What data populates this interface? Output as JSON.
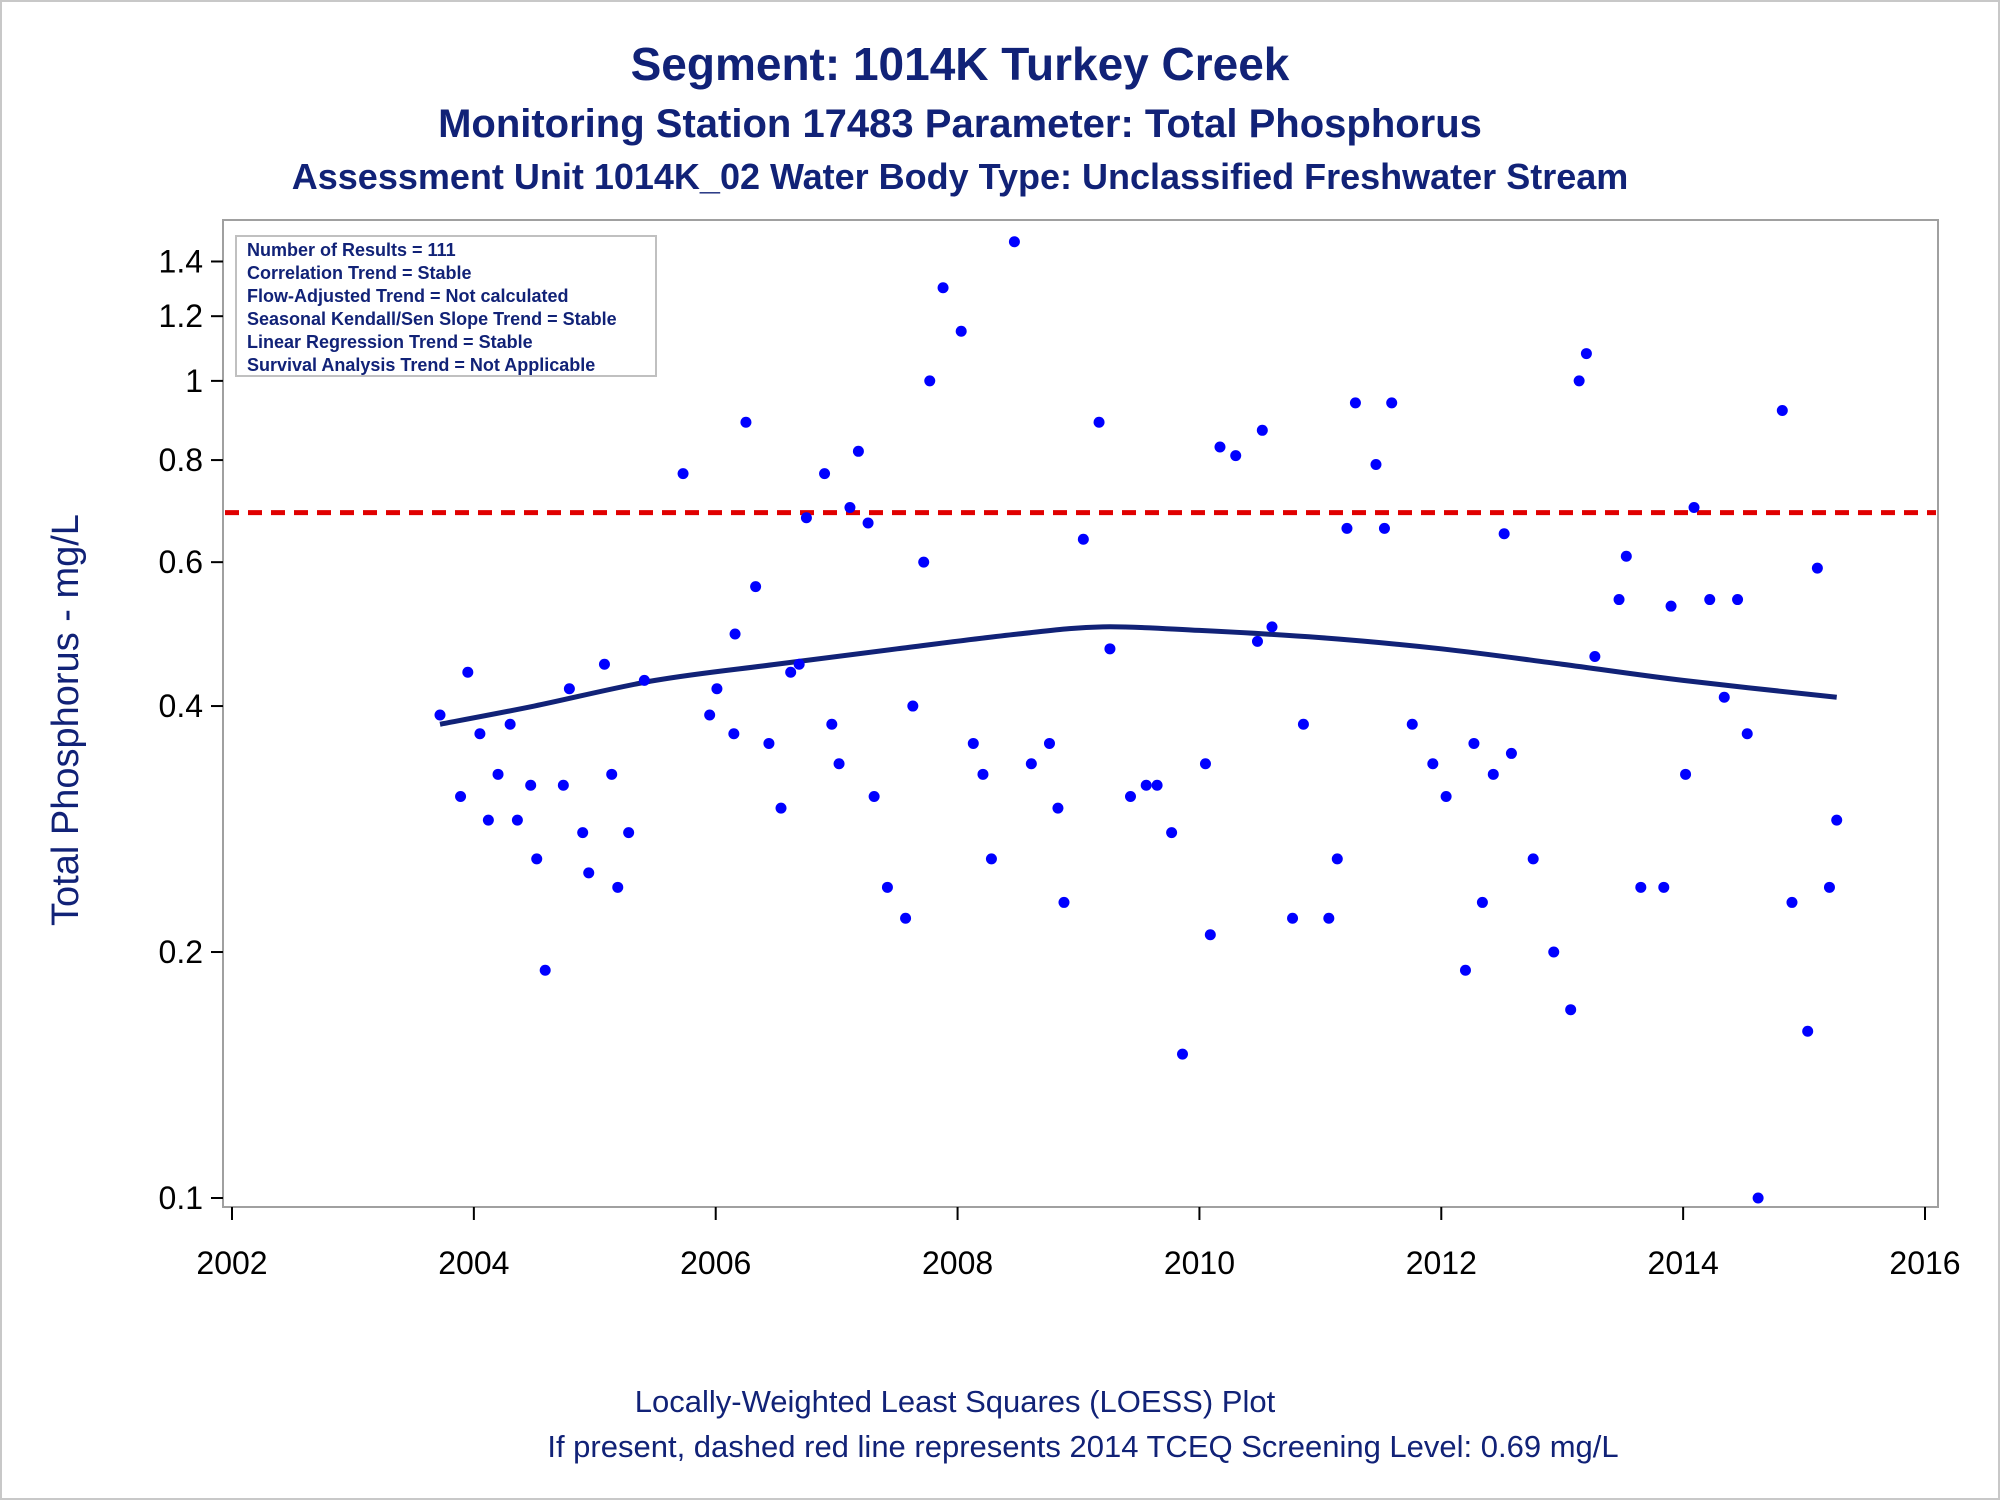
{
  "titles": {
    "line1": "Segment: 1014K  Turkey Creek",
    "line2": "Monitoring Station 17483 Parameter: Total Phosphorus",
    "line3": "Assessment Unit 1014K_02   Water Body Type: Unclassified Freshwater Stream"
  },
  "footnotes": {
    "line1": "Locally-Weighted Least Squares (LOESS) Plot",
    "line2": "If present, dashed red line represents 2014 TCEQ Screening Level: 0.69 mg/L"
  },
  "legend_box": {
    "lines": [
      "Number of Results = 111",
      "Correlation Trend = Stable",
      "Flow-Adjusted Trend = Not calculated",
      "Seasonal Kendall/Sen Slope Trend = Stable",
      "Linear Regression Trend = Stable",
      "Survival Analysis Trend = Not Applicable"
    ]
  },
  "colors": {
    "points": "#0000ff",
    "loess": "#112277",
    "screening": "#e00000",
    "text": "#112277"
  },
  "chart_data": {
    "type": "scatter",
    "ylabel": "Total Phosphorus - mg/L",
    "xlabel": "",
    "y_scale": "log",
    "xlim": [
      2002,
      2016
    ],
    "ylim": [
      0.1,
      1.5
    ],
    "x_ticks": [
      "2002",
      "2004",
      "2006",
      "2008",
      "2010",
      "2012",
      "2014",
      "2016"
    ],
    "y_ticks": [
      "0.1",
      "0.2",
      "0.4",
      "0.6",
      "0.8",
      "1",
      "1.2",
      "1.4"
    ],
    "screening_level": 0.69,
    "points": [
      [
        2003.72,
        0.39
      ],
      [
        2003.89,
        0.31
      ],
      [
        2003.95,
        0.44
      ],
      [
        2004.05,
        0.37
      ],
      [
        2004.12,
        0.29
      ],
      [
        2004.2,
        0.33
      ],
      [
        2004.3,
        0.38
      ],
      [
        2004.36,
        0.29
      ],
      [
        2004.47,
        0.32
      ],
      [
        2004.52,
        0.26
      ],
      [
        2004.59,
        0.19
      ],
      [
        2004.74,
        0.32
      ],
      [
        2004.79,
        0.42
      ],
      [
        2004.9,
        0.28
      ],
      [
        2004.95,
        0.25
      ],
      [
        2005.08,
        0.45
      ],
      [
        2005.14,
        0.33
      ],
      [
        2005.19,
        0.24
      ],
      [
        2005.28,
        0.28
      ],
      [
        2005.41,
        0.43
      ],
      [
        2005.73,
        0.77
      ],
      [
        2005.95,
        0.39
      ],
      [
        2006.01,
        0.42
      ],
      [
        2006.15,
        0.37
      ],
      [
        2006.16,
        0.49
      ],
      [
        2006.25,
        0.89
      ],
      [
        2006.33,
        0.56
      ],
      [
        2006.44,
        0.36
      ],
      [
        2006.54,
        0.3
      ],
      [
        2006.62,
        0.44
      ],
      [
        2006.69,
        0.45
      ],
      [
        2006.75,
        0.68
      ],
      [
        2006.9,
        0.77
      ],
      [
        2006.96,
        0.38
      ],
      [
        2007.02,
        0.34
      ],
      [
        2007.11,
        0.7
      ],
      [
        2007.18,
        0.82
      ],
      [
        2007.26,
        0.67
      ],
      [
        2007.31,
        0.31
      ],
      [
        2007.42,
        0.24
      ],
      [
        2007.57,
        0.22
      ],
      [
        2007.63,
        0.4
      ],
      [
        2007.72,
        0.6
      ],
      [
        2007.77,
        1.0
      ],
      [
        2007.88,
        1.3
      ],
      [
        2008.03,
        1.15
      ],
      [
        2008.13,
        0.36
      ],
      [
        2008.21,
        0.33
      ],
      [
        2008.28,
        0.26
      ],
      [
        2008.47,
        1.48
      ],
      [
        2008.61,
        0.34
      ],
      [
        2008.76,
        0.36
      ],
      [
        2008.83,
        0.3
      ],
      [
        2008.88,
        0.23
      ],
      [
        2009.04,
        0.64
      ],
      [
        2009.17,
        0.89
      ],
      [
        2009.26,
        0.47
      ],
      [
        2009.43,
        0.31
      ],
      [
        2009.56,
        0.32
      ],
      [
        2009.65,
        0.32
      ],
      [
        2009.77,
        0.28
      ],
      [
        2009.86,
        0.15
      ],
      [
        2010.05,
        0.34
      ],
      [
        2010.09,
        0.21
      ],
      [
        2010.17,
        0.83
      ],
      [
        2010.3,
        0.81
      ],
      [
        2010.48,
        0.48
      ],
      [
        2010.52,
        0.87
      ],
      [
        2010.6,
        0.5
      ],
      [
        2010.77,
        0.22
      ],
      [
        2010.86,
        0.38
      ],
      [
        2011.07,
        0.22
      ],
      [
        2011.14,
        0.26
      ],
      [
        2011.22,
        0.66
      ],
      [
        2011.29,
        0.94
      ],
      [
        2011.46,
        0.79
      ],
      [
        2011.53,
        0.66
      ],
      [
        2011.59,
        0.94
      ],
      [
        2011.76,
        0.38
      ],
      [
        2011.93,
        0.34
      ],
      [
        2012.04,
        0.31
      ],
      [
        2012.2,
        0.19
      ],
      [
        2012.27,
        0.36
      ],
      [
        2012.34,
        0.23
      ],
      [
        2012.43,
        0.33
      ],
      [
        2012.58,
        0.35
      ],
      [
        2012.52,
        0.65
      ],
      [
        2012.76,
        0.26
      ],
      [
        2012.93,
        0.2
      ],
      [
        2013.07,
        0.17
      ],
      [
        2013.14,
        1.0
      ],
      [
        2013.2,
        1.08
      ],
      [
        2013.27,
        0.46
      ],
      [
        2013.47,
        0.54
      ],
      [
        2013.53,
        0.61
      ],
      [
        2013.65,
        0.24
      ],
      [
        2013.84,
        0.24
      ],
      [
        2013.9,
        0.53
      ],
      [
        2014.02,
        0.33
      ],
      [
        2014.09,
        0.7
      ],
      [
        2014.22,
        0.54
      ],
      [
        2014.34,
        0.41
      ],
      [
        2014.45,
        0.54
      ],
      [
        2014.53,
        0.37
      ],
      [
        2014.62,
        0.1
      ],
      [
        2014.82,
        0.92
      ],
      [
        2014.9,
        0.23
      ],
      [
        2015.03,
        0.16
      ],
      [
        2015.11,
        0.59
      ],
      [
        2015.21,
        0.24
      ],
      [
        2015.27,
        0.29
      ]
    ],
    "loess": [
      [
        2003.72,
        0.38
      ],
      [
        2004.5,
        0.4
      ],
      [
        2005.5,
        0.43
      ],
      [
        2006.5,
        0.45
      ],
      [
        2007.5,
        0.47
      ],
      [
        2008.5,
        0.49
      ],
      [
        2009.2,
        0.5
      ],
      [
        2010.0,
        0.495
      ],
      [
        2011.0,
        0.485
      ],
      [
        2012.0,
        0.47
      ],
      [
        2013.0,
        0.45
      ],
      [
        2014.0,
        0.43
      ],
      [
        2015.27,
        0.41
      ]
    ]
  }
}
